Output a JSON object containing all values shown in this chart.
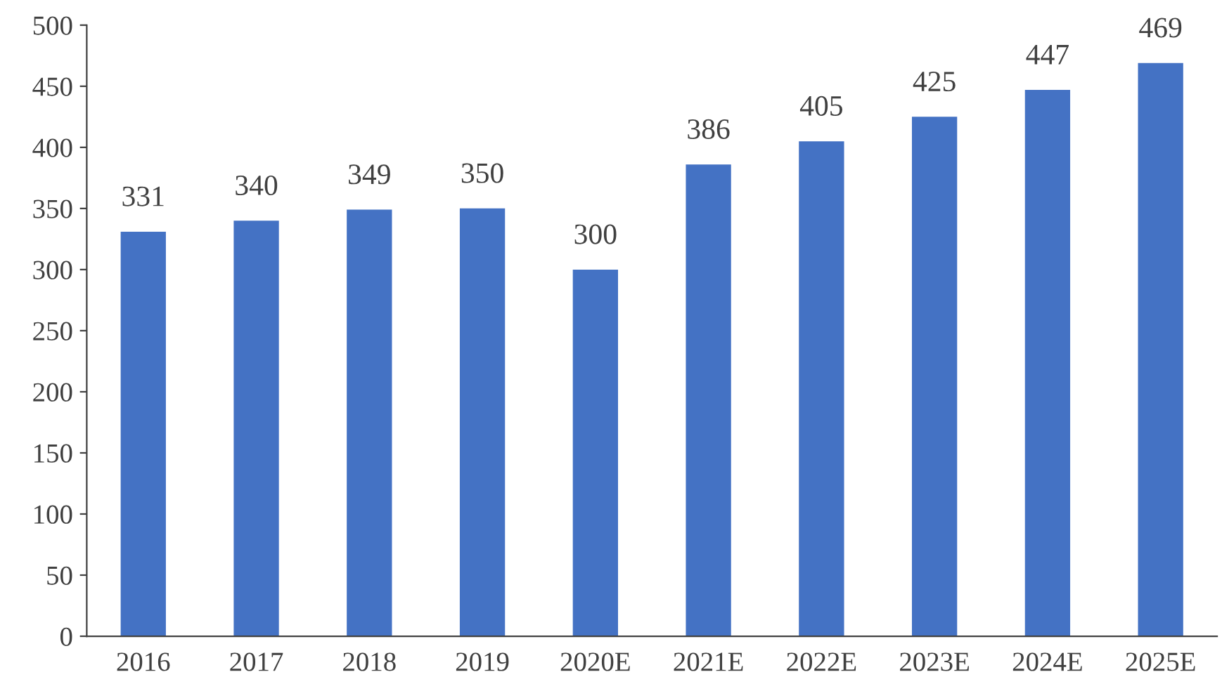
{
  "chart_data": {
    "type": "bar",
    "categories": [
      "2016",
      "2017",
      "2018",
      "2019",
      "2020E",
      "2021E",
      "2022E",
      "2023E",
      "2024E",
      "2025E"
    ],
    "values": [
      331,
      340,
      349,
      350,
      300,
      386,
      405,
      425,
      447,
      469
    ],
    "color": "#4472c4",
    "ylim": [
      0,
      500
    ],
    "yticks": [
      0,
      50,
      100,
      150,
      200,
      250,
      300,
      350,
      400,
      450,
      500
    ],
    "grid": false,
    "legend": false,
    "data_labels": true
  }
}
